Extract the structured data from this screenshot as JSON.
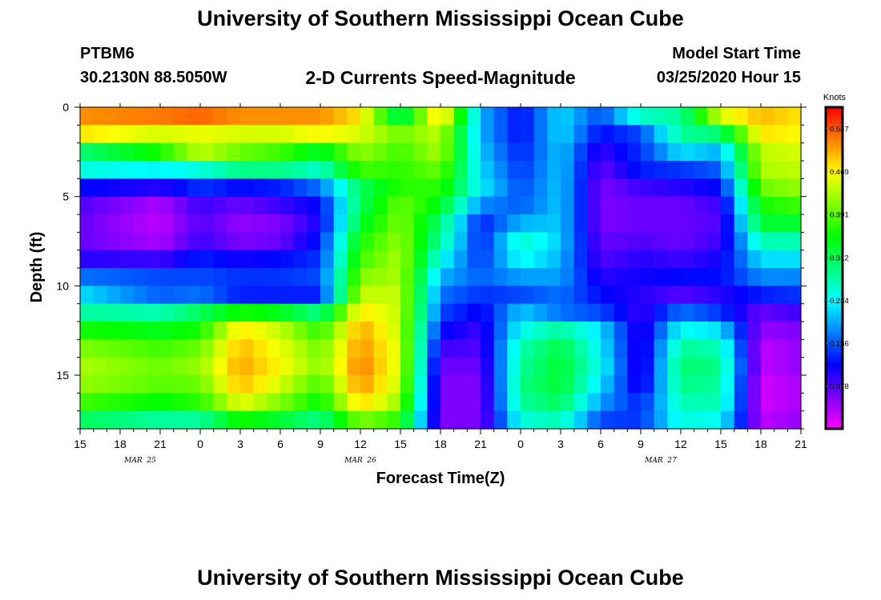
{
  "header": {
    "title": "University of Southern Mississippi Ocean Cube",
    "station": "PTBM6",
    "coords": "30.2130N 88.5050W",
    "plot_title": "2-D Currents Speed-Magnitude",
    "start_label": "Model Start Time",
    "start_value": "03/25/2020 Hour 15"
  },
  "footer": {
    "title": "University of Southern Mississippi Ocean Cube"
  },
  "chart_data": {
    "type": "heatmap",
    "title": "2-D Currents Speed-Magnitude",
    "xlabel": "Forecast Time(Z)",
    "ylabel": "Depth (ft)",
    "x_tick_labels": [
      "15",
      "18",
      "21",
      "0",
      "3",
      "6",
      "9",
      "12",
      "15",
      "18",
      "21",
      "0",
      "3",
      "6",
      "9",
      "12",
      "15",
      "18",
      "21"
    ],
    "date_labels": [
      "MAR 25",
      "MAR 26",
      "MAR 27"
    ],
    "ylim": [
      0,
      18
    ],
    "y_ticks": [
      0,
      5,
      10,
      15
    ],
    "y_inverted": true,
    "x_hours_range": [
      0,
      54
    ],
    "colorbar": {
      "unit": "Knots",
      "range": [
        0,
        0.586
      ],
      "tick_values": [
        0.547,
        0.469,
        0.391,
        0.312,
        0.234,
        0.156,
        0.078
      ],
      "tick_labels": [
        "0.547",
        "0.469",
        "0.391",
        "0.312",
        "0.234",
        "0.156",
        "0.078"
      ]
    },
    "depth_levels_ft": [
      0.5,
      1.5,
      2.5,
      3.5,
      4.5,
      5.5,
      6.5,
      7.5,
      8.5,
      9.5,
      10.5,
      11.5,
      12.5,
      13.5,
      14.5,
      15.5,
      16.5,
      17.5
    ],
    "time_hours": [
      0,
      6,
      9,
      12,
      15,
      18,
      21,
      24,
      27,
      30,
      33,
      36,
      39,
      42,
      45,
      48,
      51,
      54
    ],
    "speed_knots": [
      [
        0.52,
        0.53,
        0.54,
        0.52,
        0.52,
        0.52,
        0.48,
        0.3,
        0.5,
        0.2,
        0.12,
        0.22,
        0.15,
        0.26,
        0.28,
        0.45,
        0.5,
        0.48
      ],
      [
        0.48,
        0.45,
        0.46,
        0.45,
        0.45,
        0.47,
        0.45,
        0.4,
        0.44,
        0.2,
        0.12,
        0.22,
        0.12,
        0.15,
        0.28,
        0.3,
        0.48,
        0.47
      ],
      [
        0.3,
        0.36,
        0.44,
        0.4,
        0.38,
        0.33,
        0.42,
        0.38,
        0.43,
        0.21,
        0.13,
        0.21,
        0.09,
        0.14,
        0.22,
        0.2,
        0.44,
        0.45
      ],
      [
        0.25,
        0.23,
        0.25,
        0.29,
        0.29,
        0.26,
        0.38,
        0.37,
        0.4,
        0.22,
        0.14,
        0.21,
        0.07,
        0.13,
        0.14,
        0.16,
        0.43,
        0.44
      ],
      [
        0.12,
        0.1,
        0.14,
        0.12,
        0.13,
        0.17,
        0.31,
        0.37,
        0.37,
        0.23,
        0.15,
        0.21,
        0.06,
        0.09,
        0.1,
        0.12,
        0.4,
        0.42
      ],
      [
        0.08,
        0.04,
        0.09,
        0.07,
        0.09,
        0.12,
        0.31,
        0.4,
        0.34,
        0.18,
        0.16,
        0.21,
        0.06,
        0.07,
        0.07,
        0.09,
        0.36,
        0.38
      ],
      [
        0.07,
        0.03,
        0.08,
        0.05,
        0.06,
        0.11,
        0.33,
        0.41,
        0.3,
        0.13,
        0.2,
        0.21,
        0.06,
        0.07,
        0.07,
        0.08,
        0.33,
        0.33
      ],
      [
        0.07,
        0.04,
        0.09,
        0.06,
        0.07,
        0.13,
        0.36,
        0.42,
        0.28,
        0.13,
        0.26,
        0.21,
        0.07,
        0.08,
        0.07,
        0.09,
        0.27,
        0.27
      ],
      [
        0.1,
        0.09,
        0.13,
        0.11,
        0.12,
        0.14,
        0.38,
        0.43,
        0.24,
        0.14,
        0.24,
        0.2,
        0.08,
        0.1,
        0.09,
        0.11,
        0.22,
        0.22
      ],
      [
        0.17,
        0.15,
        0.15,
        0.14,
        0.14,
        0.15,
        0.41,
        0.43,
        0.2,
        0.16,
        0.19,
        0.19,
        0.1,
        0.11,
        0.12,
        0.12,
        0.18,
        0.18
      ],
      [
        0.22,
        0.16,
        0.17,
        0.13,
        0.13,
        0.13,
        0.44,
        0.44,
        0.17,
        0.14,
        0.15,
        0.17,
        0.12,
        0.1,
        0.08,
        0.1,
        0.13,
        0.14
      ],
      [
        0.28,
        0.27,
        0.31,
        0.36,
        0.34,
        0.29,
        0.48,
        0.44,
        0.15,
        0.11,
        0.21,
        0.17,
        0.15,
        0.09,
        0.17,
        0.14,
        0.07,
        0.09
      ],
      [
        0.36,
        0.34,
        0.36,
        0.48,
        0.44,
        0.37,
        0.51,
        0.44,
        0.12,
        0.09,
        0.24,
        0.28,
        0.22,
        0.09,
        0.24,
        0.22,
        0.05,
        0.06
      ],
      [
        0.41,
        0.38,
        0.4,
        0.5,
        0.46,
        0.4,
        0.52,
        0.45,
        0.09,
        0.08,
        0.27,
        0.32,
        0.23,
        0.09,
        0.28,
        0.27,
        0.03,
        0.05
      ],
      [
        0.43,
        0.4,
        0.42,
        0.51,
        0.47,
        0.41,
        0.53,
        0.45,
        0.07,
        0.07,
        0.28,
        0.33,
        0.24,
        0.09,
        0.3,
        0.29,
        0.03,
        0.05
      ],
      [
        0.42,
        0.39,
        0.4,
        0.5,
        0.45,
        0.38,
        0.52,
        0.44,
        0.06,
        0.06,
        0.29,
        0.33,
        0.22,
        0.1,
        0.29,
        0.28,
        0.02,
        0.04
      ],
      [
        0.38,
        0.35,
        0.37,
        0.46,
        0.41,
        0.35,
        0.49,
        0.42,
        0.06,
        0.06,
        0.28,
        0.31,
        0.19,
        0.13,
        0.27,
        0.27,
        0.02,
        0.04
      ],
      [
        0.31,
        0.28,
        0.28,
        0.36,
        0.33,
        0.29,
        0.41,
        0.37,
        0.06,
        0.06,
        0.25,
        0.27,
        0.15,
        0.14,
        0.25,
        0.24,
        0.03,
        0.05
      ]
    ]
  }
}
